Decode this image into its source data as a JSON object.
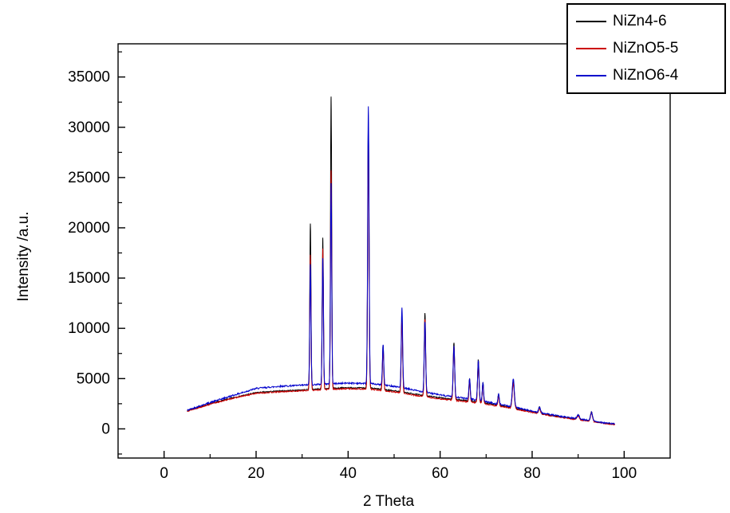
{
  "chart_data": {
    "type": "line",
    "title": "",
    "xlabel": "2 Theta",
    "ylabel": "Intensity /a.u.",
    "xlim": [
      -10,
      110
    ],
    "ylim": [
      -2900,
      38300
    ],
    "xticks": [
      0,
      20,
      40,
      60,
      80,
      100
    ],
    "xticks_minor": [
      10,
      30,
      50,
      70,
      90
    ],
    "yticks": [
      0,
      5000,
      10000,
      15000,
      20000,
      25000,
      30000,
      35000
    ],
    "yticks_minor": [
      -2500,
      2500,
      7500,
      12500,
      17500,
      22500,
      27500,
      32500,
      37500
    ],
    "grid": false,
    "legend_position": "top-right",
    "background_color": "#ffffff",
    "frame_color": "#000000",
    "series": [
      {
        "name": "NiZn4-6",
        "color": "#000000",
        "x_start": 5,
        "x_end": 98,
        "noise": 55,
        "seed": 7,
        "background_points": [
          [
            5,
            1800
          ],
          [
            10,
            2500
          ],
          [
            15,
            3100
          ],
          [
            20,
            3600
          ],
          [
            25,
            3760
          ],
          [
            30,
            3870
          ],
          [
            36,
            4020
          ],
          [
            40,
            4100
          ],
          [
            45,
            4050
          ],
          [
            50,
            3800
          ],
          [
            55,
            3420
          ],
          [
            60,
            3100
          ],
          [
            64,
            2900
          ],
          [
            68,
            2700
          ],
          [
            72,
            2400
          ],
          [
            76,
            2080
          ],
          [
            80,
            1700
          ],
          [
            85,
            1280
          ],
          [
            90,
            950
          ],
          [
            93,
            780
          ],
          [
            96,
            560
          ],
          [
            98,
            480
          ]
        ],
        "peaks": [
          [
            31.8,
            16500,
            0.13
          ],
          [
            34.5,
            15000,
            0.13
          ],
          [
            36.3,
            29000,
            0.13
          ],
          [
            44.4,
            26500,
            0.15
          ],
          [
            47.6,
            4400,
            0.14
          ],
          [
            51.7,
            7500,
            0.15
          ],
          [
            56.7,
            8200,
            0.15
          ],
          [
            63.0,
            5600,
            0.16
          ],
          [
            66.4,
            2200,
            0.14
          ],
          [
            68.3,
            4200,
            0.16
          ],
          [
            69.3,
            2000,
            0.14
          ],
          [
            72.7,
            1100,
            0.15
          ],
          [
            75.9,
            2700,
            0.22
          ],
          [
            81.6,
            600,
            0.2
          ],
          [
            90.0,
            450,
            0.25
          ],
          [
            92.9,
            900,
            0.22
          ]
        ]
      },
      {
        "name": "NiZnO5-5",
        "color": "#cc0000",
        "x_start": 5,
        "x_end": 98,
        "noise": 55,
        "seed": 13,
        "background_points": [
          [
            5,
            1760
          ],
          [
            10,
            2450
          ],
          [
            15,
            3050
          ],
          [
            20,
            3540
          ],
          [
            25,
            3680
          ],
          [
            30,
            3790
          ],
          [
            36,
            3930
          ],
          [
            40,
            4000
          ],
          [
            45,
            3940
          ],
          [
            50,
            3680
          ],
          [
            55,
            3300
          ],
          [
            60,
            2980
          ],
          [
            64,
            2790
          ],
          [
            68,
            2600
          ],
          [
            72,
            2310
          ],
          [
            76,
            2010
          ],
          [
            80,
            1640
          ],
          [
            85,
            1230
          ],
          [
            90,
            900
          ],
          [
            93,
            740
          ],
          [
            96,
            520
          ],
          [
            98,
            440
          ]
        ],
        "peaks": [
          [
            31.8,
            13500,
            0.13
          ],
          [
            34.5,
            14000,
            0.13
          ],
          [
            36.3,
            21800,
            0.13
          ],
          [
            44.4,
            24000,
            0.15
          ],
          [
            47.6,
            4100,
            0.14
          ],
          [
            51.7,
            7100,
            0.15
          ],
          [
            56.7,
            7700,
            0.15
          ],
          [
            63.0,
            5300,
            0.16
          ],
          [
            66.4,
            2100,
            0.14
          ],
          [
            68.3,
            4000,
            0.16
          ],
          [
            69.3,
            1900,
            0.14
          ],
          [
            72.7,
            1000,
            0.15
          ],
          [
            75.9,
            2500,
            0.22
          ],
          [
            81.6,
            550,
            0.2
          ],
          [
            90.0,
            420,
            0.25
          ],
          [
            92.9,
            850,
            0.22
          ]
        ]
      },
      {
        "name": "NiZnO6-4",
        "color": "#0000cc",
        "x_start": 5,
        "x_end": 98,
        "noise": 75,
        "seed": 42,
        "background_points": [
          [
            5,
            1850
          ],
          [
            10,
            2620
          ],
          [
            15,
            3330
          ],
          [
            20,
            4020
          ],
          [
            25,
            4230
          ],
          [
            30,
            4340
          ],
          [
            36,
            4480
          ],
          [
            40,
            4560
          ],
          [
            45,
            4500
          ],
          [
            50,
            4240
          ],
          [
            55,
            3800
          ],
          [
            60,
            3380
          ],
          [
            64,
            3130
          ],
          [
            68,
            2870
          ],
          [
            72,
            2520
          ],
          [
            76,
            2170
          ],
          [
            80,
            1760
          ],
          [
            85,
            1330
          ],
          [
            90,
            990
          ],
          [
            93,
            810
          ],
          [
            96,
            580
          ],
          [
            98,
            500
          ]
        ],
        "peaks": [
          [
            31.8,
            12000,
            0.13
          ],
          [
            34.5,
            12500,
            0.13
          ],
          [
            36.3,
            20000,
            0.13
          ],
          [
            44.4,
            27500,
            0.15
          ],
          [
            47.6,
            4000,
            0.14
          ],
          [
            51.7,
            7950,
            0.15
          ],
          [
            56.7,
            7000,
            0.15
          ],
          [
            63.0,
            5000,
            0.16
          ],
          [
            66.4,
            2000,
            0.14
          ],
          [
            68.3,
            3900,
            0.16
          ],
          [
            69.3,
            1800,
            0.14
          ],
          [
            72.7,
            1000,
            0.15
          ],
          [
            75.9,
            2800,
            0.22
          ],
          [
            81.6,
            550,
            0.2
          ],
          [
            90.0,
            420,
            0.25
          ],
          [
            92.9,
            800,
            0.22
          ]
        ]
      }
    ]
  }
}
